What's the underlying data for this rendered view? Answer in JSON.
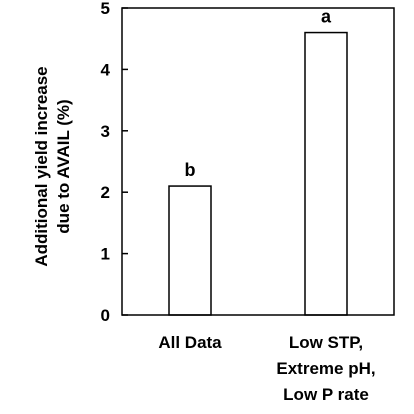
{
  "chart_data": {
    "type": "bar",
    "title": "",
    "xlabel": "",
    "ylabel_lines": [
      "Additional yield increase",
      "due to AVAIL (%)"
    ],
    "ylim": [
      0,
      5
    ],
    "yticks": [
      0,
      1,
      2,
      3,
      4,
      5
    ],
    "grid": false,
    "categories": [
      [
        "All Data"
      ],
      [
        "Low STP,",
        "Extreme pH,",
        "Low P rate"
      ]
    ],
    "values": [
      2.1,
      4.6
    ],
    "bar_labels": [
      "b",
      "a"
    ],
    "colors": {
      "bar_fill": "#ffffff",
      "stroke": "#000000"
    }
  }
}
